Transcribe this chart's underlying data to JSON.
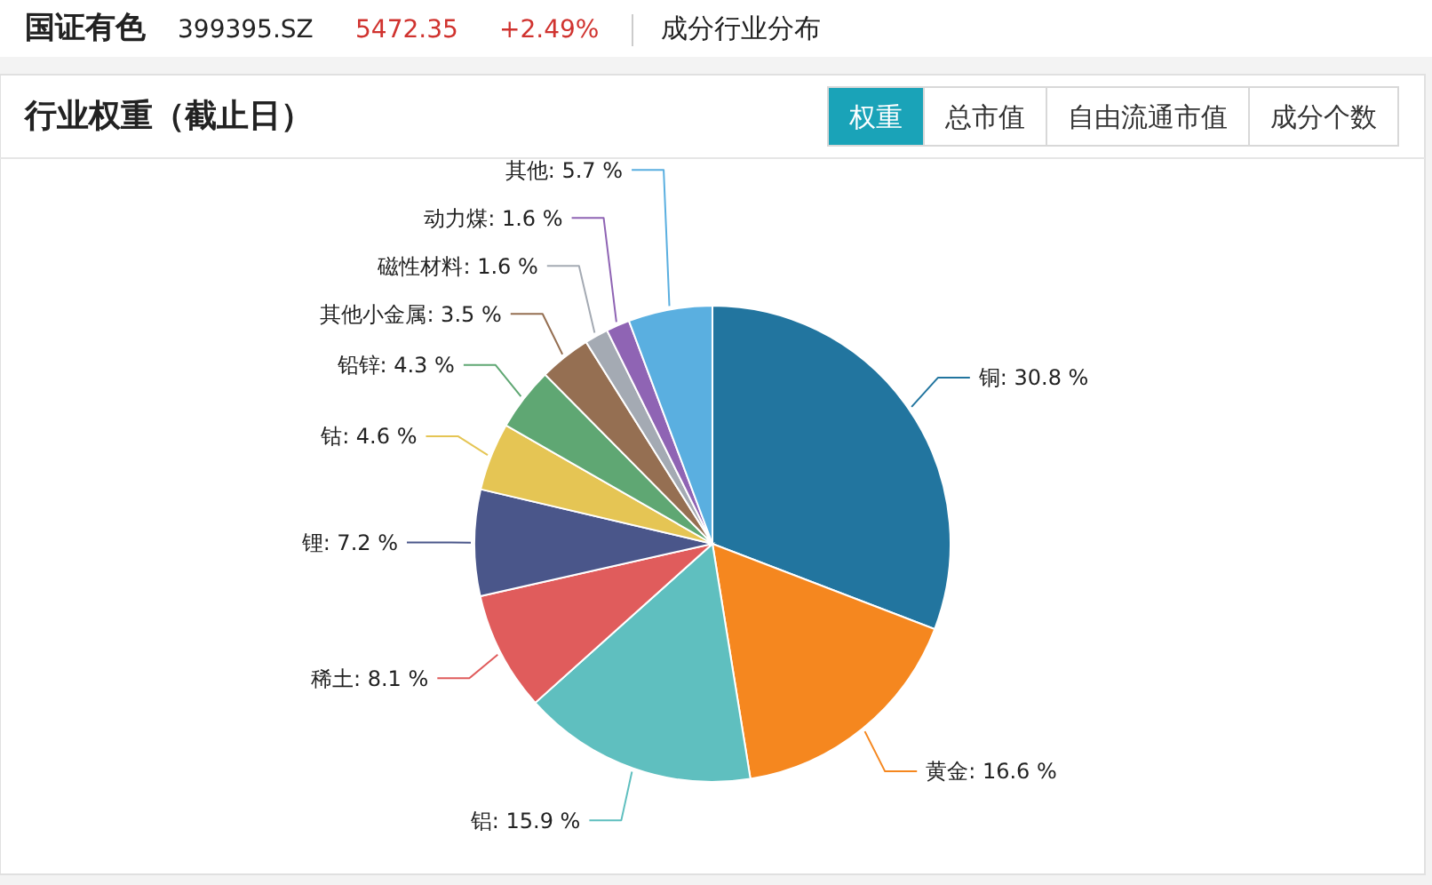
{
  "chart_data": {
    "type": "pie",
    "title": "行业权重（截止日）",
    "annotations": [
      "国证有色",
      "399395.SZ",
      "5472.35",
      "+2.49%",
      "成分行业分布",
      "权重",
      "总市值",
      "自由流通市值",
      "成分个数"
    ],
    "categories": [
      "铜",
      "黄金",
      "铝",
      "稀土",
      "锂",
      "钴",
      "铅锌",
      "其他小金属",
      "磁性材料",
      "动力煤",
      "其他"
    ],
    "values": [
      30.8,
      16.6,
      15.9,
      8.1,
      7.2,
      4.6,
      4.3,
      3.5,
      1.6,
      1.6,
      5.7
    ],
    "value_labels": [
      "30.8 %",
      "16.6 %",
      "15.9 %",
      "8.1 %",
      "7.2 %",
      "4.6 %",
      "4.3 %",
      "3.5 %",
      "1.6 %",
      "1.6 %",
      "5.7 %"
    ],
    "colors": [
      "#22759f",
      "#f5871f",
      "#5fbfbf",
      "#e05c5c",
      "#4a568a",
      "#e5c554",
      "#5fa773",
      "#956f52",
      "#a4aab3",
      "#8f64b4",
      "#5aafe0"
    ]
  }
}
